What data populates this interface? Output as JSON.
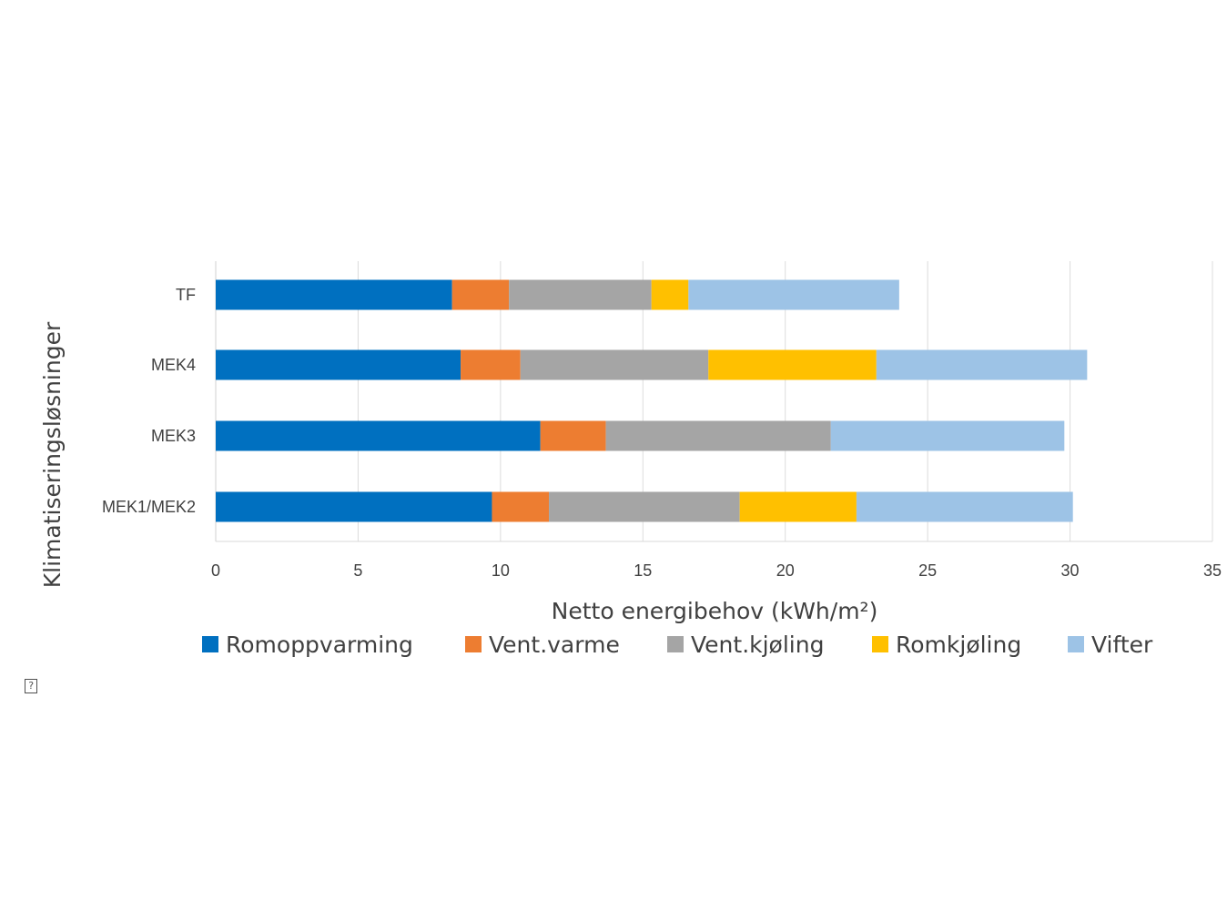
{
  "chart_data": {
    "type": "bar",
    "orientation": "horizontal",
    "stacked": true,
    "categories": [
      "MEK1/MEK2",
      "MEK3",
      "MEK4",
      "TF"
    ],
    "series": [
      {
        "name": "Romoppvarming",
        "color": "#0070C0",
        "values": [
          9.7,
          11.4,
          8.6,
          8.3
        ]
      },
      {
        "name": "Vent.varme",
        "color": "#ED7D31",
        "values": [
          2.0,
          2.3,
          2.1,
          2.0
        ]
      },
      {
        "name": "Vent.kjøling",
        "color": "#A5A5A5",
        "values": [
          6.7,
          7.9,
          6.6,
          5.0
        ]
      },
      {
        "name": "Romkjøling",
        "color": "#FFC000",
        "values": [
          4.1,
          0.0,
          5.9,
          1.3
        ]
      },
      {
        "name": "Vifter",
        "color": "#9DC3E6",
        "values": [
          7.6,
          8.2,
          7.4,
          7.4
        ]
      }
    ],
    "xlabel": "Netto energibehov (kWh/m²)",
    "ylabel": "Klimatiseringsløsninger",
    "xlim": [
      0,
      35
    ],
    "xticks": [
      0,
      5,
      10,
      15,
      20,
      25,
      30,
      35
    ],
    "grid": true,
    "legend_position": "bottom"
  },
  "icons": {
    "corner_icon": "?"
  }
}
